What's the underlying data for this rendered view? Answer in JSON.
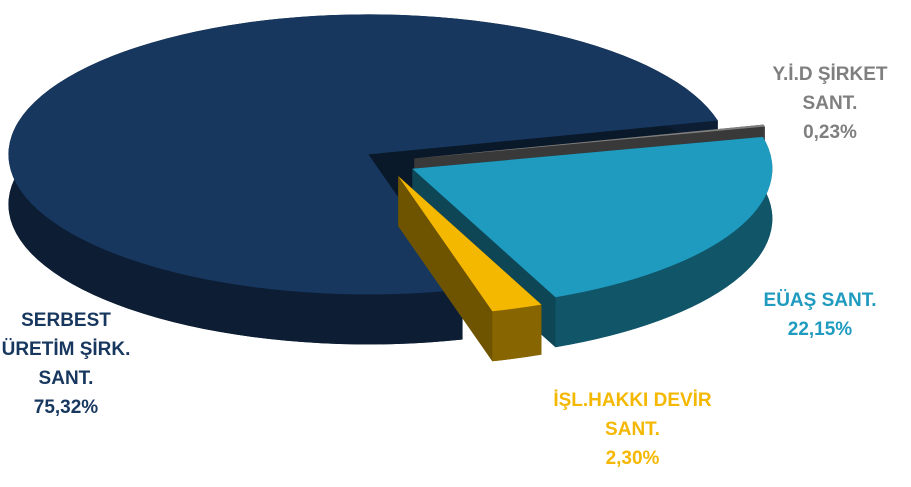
{
  "chart_data": {
    "type": "pie3d",
    "categories": [
      "Y.İ.D ŞİRKET SANT.",
      "EÜAŞ SANT.",
      "İŞL.HAKKI DEVİR SANT.",
      "SERBEST ÜRETİM ŞİRK. SANT."
    ],
    "values": [
      0.23,
      22.15,
      2.3,
      75.32
    ],
    "value_labels": [
      "0,23%",
      "22,15%",
      "2,30%",
      "75,32%"
    ],
    "colors": [
      "#7f7f7f",
      "#1f9bbf",
      "#f5b800",
      "#17375e"
    ]
  }
}
